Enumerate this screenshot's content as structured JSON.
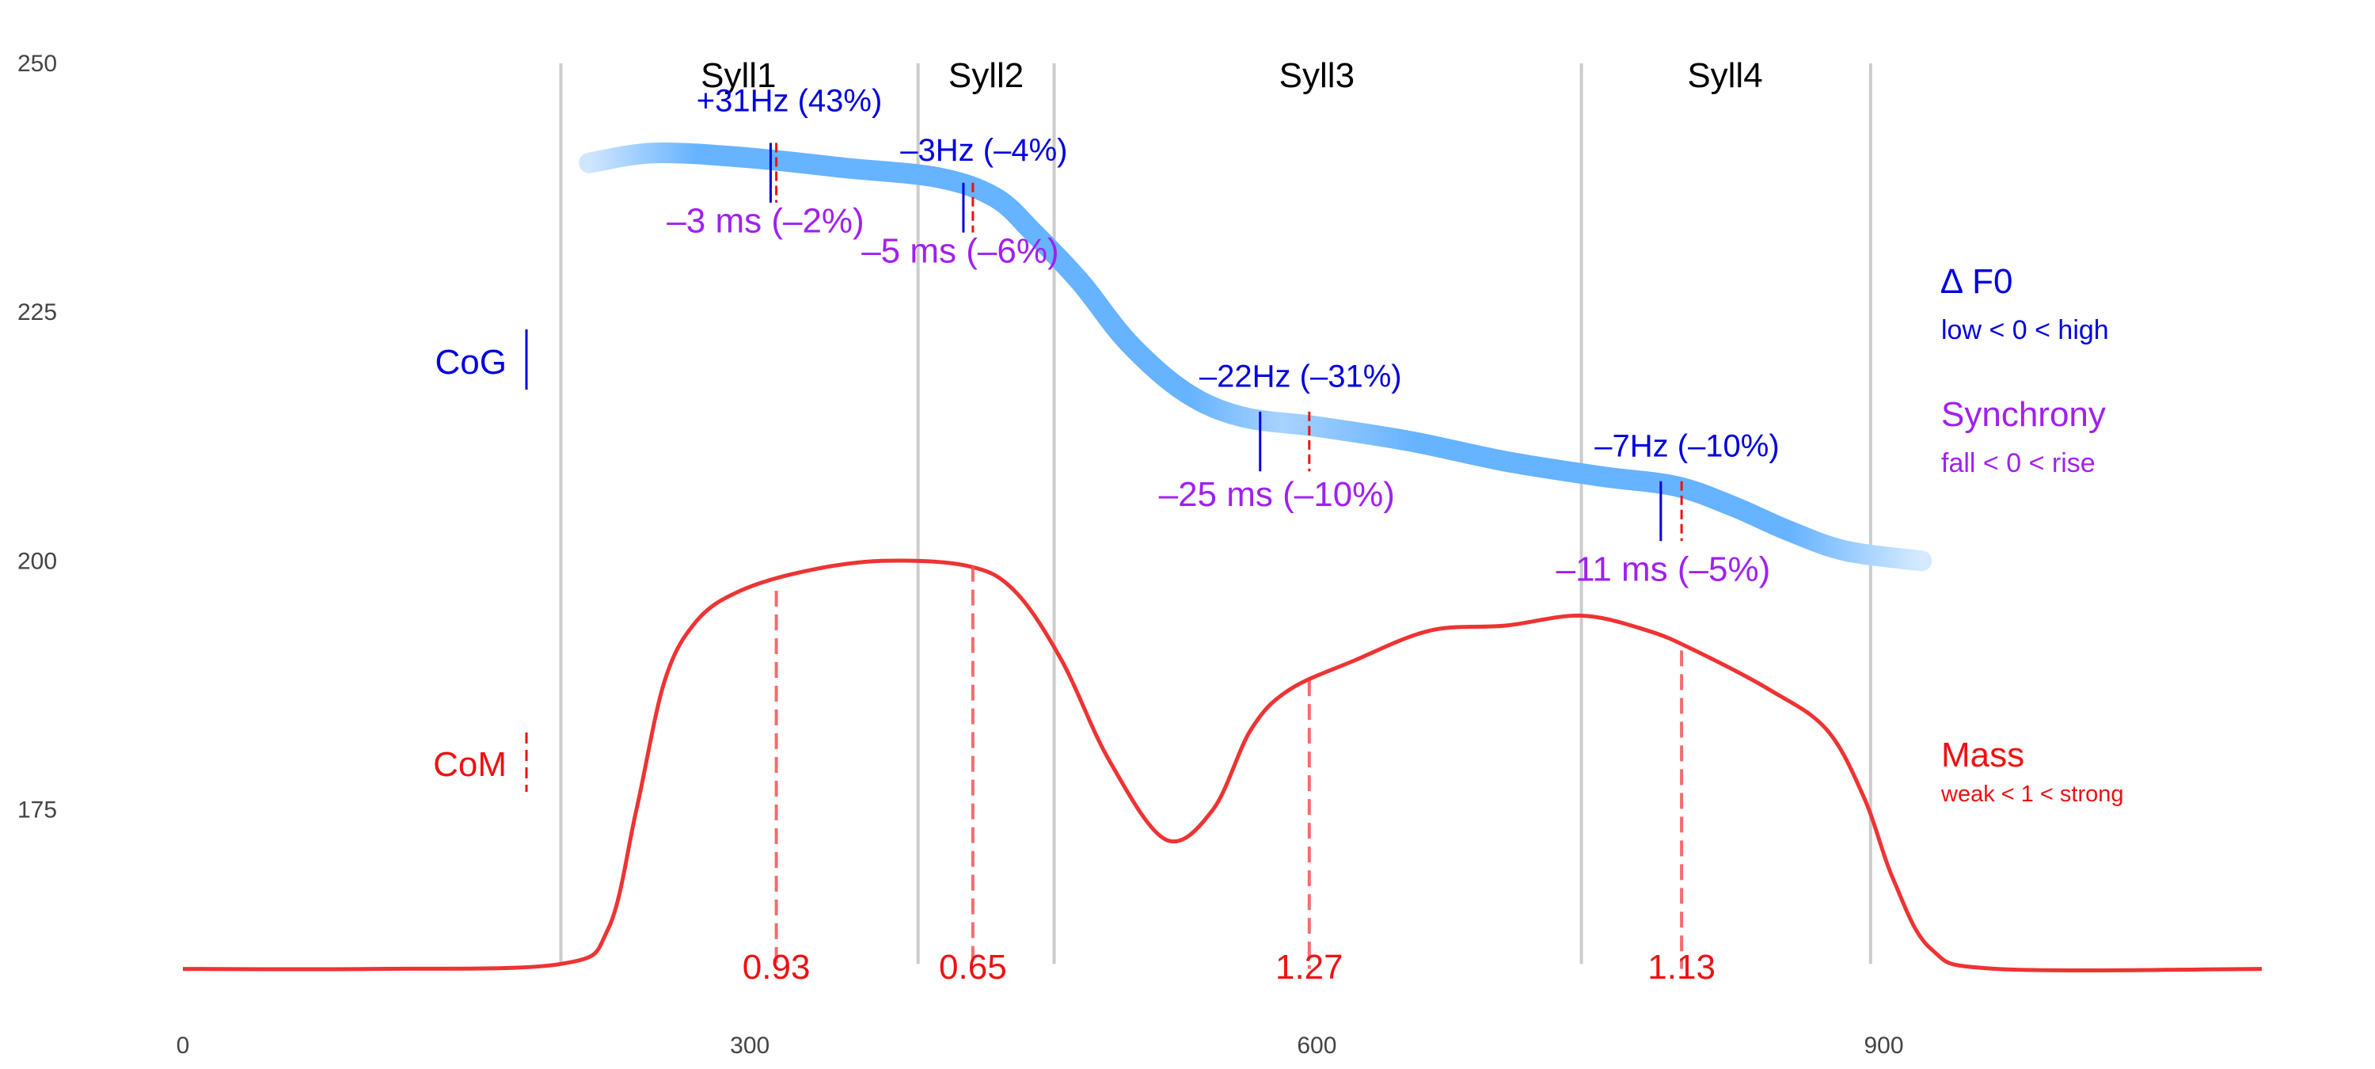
{
  "chart_data": {
    "type": "line",
    "title": "",
    "xlabel": "",
    "ylabel": "",
    "xlim": [
      0,
      1100
    ],
    "ylim": [
      160,
      250
    ],
    "x_ticks": [
      {
        "value": 0,
        "label": "0"
      },
      {
        "value": 300,
        "label": "300"
      },
      {
        "value": 600,
        "label": "600"
      },
      {
        "value": 900,
        "label": "900"
      }
    ],
    "y_ticks": [
      {
        "value": 175,
        "label": "175"
      },
      {
        "value": 200,
        "label": "200"
      },
      {
        "value": 225,
        "label": "225"
      },
      {
        "value": 250,
        "label": "250"
      }
    ],
    "grid": false,
    "syllable_boundaries": [
      200,
      389,
      461,
      740,
      893
    ],
    "syllables": [
      {
        "label": "Syll1",
        "x_center": 294
      },
      {
        "label": "Syll2",
        "x_center": 425
      },
      {
        "label": "Syll3",
        "x_center": 600
      },
      {
        "label": "Syll4",
        "x_center": 816
      }
    ],
    "f0_contour": {
      "color": "#66b3ff",
      "points": [
        [
          215,
          240
        ],
        [
          250,
          241
        ],
        [
          300,
          240.5
        ],
        [
          350,
          239.5
        ],
        [
          400,
          238.5
        ],
        [
          430,
          236.5
        ],
        [
          450,
          233
        ],
        [
          475,
          228
        ],
        [
          500,
          222
        ],
        [
          530,
          217
        ],
        [
          560,
          214.5
        ],
        [
          600,
          213.5
        ],
        [
          650,
          212
        ],
        [
          700,
          210
        ],
        [
          750,
          208.5
        ],
        [
          790,
          207.5
        ],
        [
          820,
          205.5
        ],
        [
          850,
          203
        ],
        [
          880,
          201
        ],
        [
          920,
          200
        ]
      ]
    },
    "mass_curve": {
      "color": "#ee3333",
      "baseline": 159,
      "points": [
        [
          0,
          159
        ],
        [
          100,
          159
        ],
        [
          200,
          159.5
        ],
        [
          225,
          163
        ],
        [
          240,
          175
        ],
        [
          255,
          188
        ],
        [
          272,
          194
        ],
        [
          295,
          197
        ],
        [
          330,
          199
        ],
        [
          370,
          200
        ],
        [
          415,
          199.5
        ],
        [
          440,
          197
        ],
        [
          465,
          190
        ],
        [
          490,
          180
        ],
        [
          520,
          172
        ],
        [
          545,
          175
        ],
        [
          565,
          183
        ],
        [
          585,
          187
        ],
        [
          620,
          190
        ],
        [
          660,
          193
        ],
        [
          700,
          193.5
        ],
        [
          740,
          194.5
        ],
        [
          775,
          193
        ],
        [
          800,
          191
        ],
        [
          840,
          187
        ],
        [
          870,
          183
        ],
        [
          890,
          176
        ],
        [
          905,
          168
        ],
        [
          925,
          161
        ],
        [
          960,
          159
        ],
        [
          1100,
          159
        ]
      ]
    },
    "annotations": [
      {
        "syllable": "Syll1",
        "cog_x": 311,
        "com_x": 314,
        "f0_text": "+31Hz (43%)",
        "f0_y": 245.2,
        "cog_y_top": 242,
        "cog_y_bottom": 236,
        "sync_text": "–3 ms (–2%)",
        "sync_y": 233,
        "mass_text": "0.93",
        "mass_top_y": 197
      },
      {
        "syllable": "Syll2",
        "cog_x": 413,
        "com_x": 418,
        "f0_text": "–3Hz (–4%)",
        "f0_y": 240.2,
        "cog_y_top": 238,
        "cog_y_bottom": 233,
        "sync_text": "–5 ms (–6%)",
        "sync_y": 230,
        "mass_text": "0.65",
        "mass_top_y": 199.5
      },
      {
        "syllable": "Syll3",
        "cog_x": 570,
        "com_x": 596,
        "f0_text": "–22Hz (–31%)",
        "f0_y": 217.5,
        "cog_y_top": 215,
        "cog_y_bottom": 209,
        "sync_text": "–25 ms (–10%)",
        "sync_y": 205.5,
        "mass_text": "1.27",
        "mass_top_y": 188
      },
      {
        "syllable": "Syll4",
        "cog_x": 782,
        "com_x": 793,
        "f0_text": "–7Hz (–10%)",
        "f0_y": 210.5,
        "cog_y_top": 208,
        "cog_y_bottom": 202,
        "sync_text": "–11 ms (–5%)",
        "sync_y": 198,
        "mass_text": "1.13",
        "mass_top_y": 191
      }
    ],
    "markers": {
      "cog_label": "CoG",
      "com_label": "CoM"
    },
    "legend": {
      "position": "right",
      "f0_title": "∆ F0",
      "f0_sub": "low < 0 < high",
      "sync_title": "Synchrony",
      "sync_sub": "fall < 0 < rise",
      "mass_title": "Mass",
      "mass_sub": "weak < 1 < strong"
    },
    "colors": {
      "f0": "#0000e0",
      "synchrony": "#a020f0",
      "mass": "#ee1111",
      "boundary": "#cccccc",
      "contour": "#66b3ff"
    }
  }
}
